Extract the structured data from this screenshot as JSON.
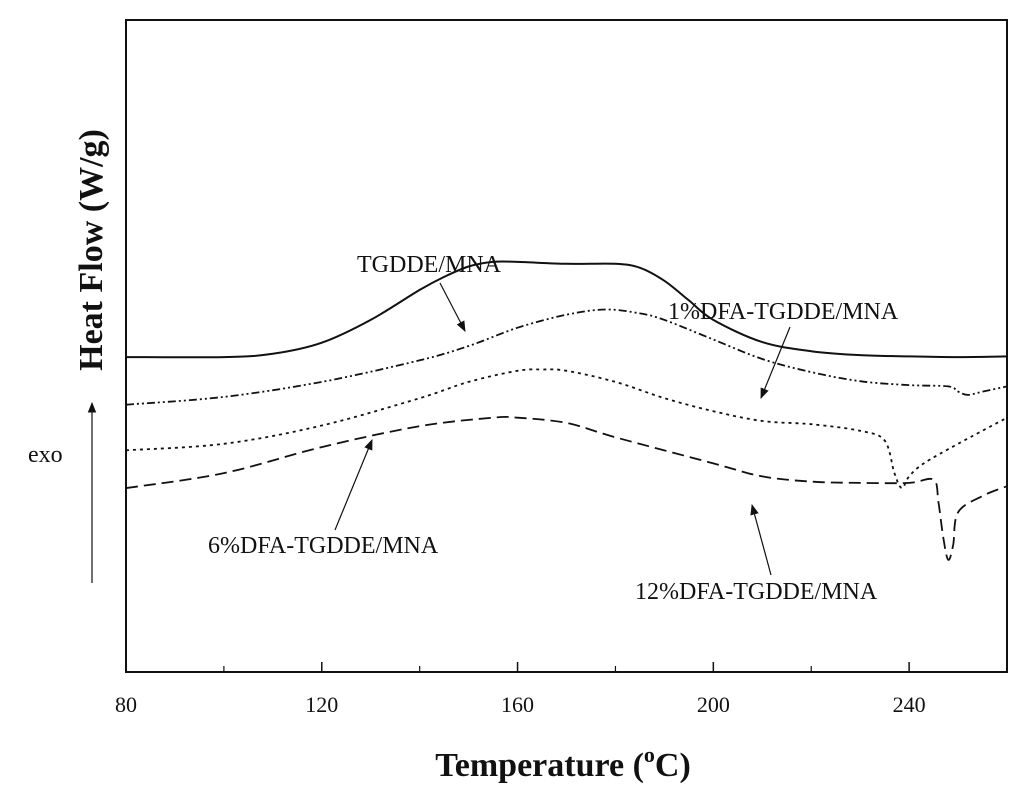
{
  "chart_data": {
    "type": "line",
    "title": "",
    "xlabel": "Temperature (",
    "xlabel_sup": "o",
    "xlabel_unit": "C)",
    "ylabel": "Heat Flow  (W/g)",
    "exo_label": "exo",
    "xlim": [
      80,
      260
    ],
    "ylim": [
      0,
      10
    ],
    "x_ticks": [
      80,
      120,
      160,
      200,
      240
    ],
    "x_tick_labels": [
      "80",
      "120",
      "160",
      "200",
      "240"
    ],
    "x_minor_ticks": [
      100,
      140,
      180,
      220
    ],
    "y_ticks_shown": false,
    "series": [
      {
        "name": "TGDDE/MNA",
        "style": "solid",
        "x": [
          80,
          100,
          110,
          120,
          130,
          140,
          145,
          150,
          155,
          160,
          170,
          180,
          185,
          190,
          195,
          200,
          210,
          220,
          230,
          240,
          250,
          260
        ],
        "y": [
          4.83,
          4.83,
          4.88,
          5.05,
          5.4,
          5.86,
          6.06,
          6.22,
          6.29,
          6.29,
          6.26,
          6.26,
          6.2,
          6.0,
          5.7,
          5.4,
          5.06,
          4.92,
          4.86,
          4.84,
          4.83,
          4.84
        ]
      },
      {
        "name": "1%DFA-TGDDE/MNA",
        "style": "dashdot",
        "x": [
          80,
          100,
          120,
          140,
          150,
          160,
          170,
          178,
          185,
          190,
          200,
          210,
          220,
          230,
          240,
          248,
          250,
          252,
          255,
          260
        ],
        "y": [
          4.1,
          4.22,
          4.45,
          4.78,
          5.0,
          5.28,
          5.48,
          5.56,
          5.5,
          5.4,
          5.1,
          4.8,
          4.6,
          4.46,
          4.4,
          4.38,
          4.3,
          4.25,
          4.3,
          4.38
        ]
      },
      {
        "name": "6%DFA-TGDDE/MNA",
        "style": "dotted",
        "x": [
          80,
          100,
          120,
          140,
          150,
          160,
          165,
          170,
          180,
          190,
          200,
          210,
          220,
          230,
          235,
          237,
          238.5,
          240,
          243,
          250,
          260
        ],
        "y": [
          3.4,
          3.5,
          3.78,
          4.2,
          4.45,
          4.62,
          4.64,
          4.62,
          4.45,
          4.2,
          4.0,
          3.85,
          3.8,
          3.7,
          3.55,
          3.05,
          2.82,
          3.0,
          3.2,
          3.5,
          3.9
        ]
      },
      {
        "name": "12%DFA-TGDDE/MNA",
        "style": "dashed",
        "x": [
          80,
          100,
          120,
          140,
          155,
          160,
          170,
          180,
          200,
          210,
          220,
          230,
          240,
          245,
          246,
          247,
          248,
          249,
          250,
          255,
          260
        ],
        "y": [
          2.82,
          3.05,
          3.45,
          3.77,
          3.9,
          3.9,
          3.82,
          3.6,
          3.2,
          3.0,
          2.92,
          2.9,
          2.9,
          2.95,
          2.6,
          2.05,
          1.72,
          1.95,
          2.45,
          2.7,
          2.85
        ]
      }
    ],
    "annotations": [
      {
        "text": "TGDDE/MNA",
        "series": "TGDDE/MNA",
        "placement": "above-left of peak"
      },
      {
        "text": "1%DFA-TGDDE/MNA",
        "series": "1%DFA-TGDDE/MNA",
        "placement": "upper-right"
      },
      {
        "text": "6%DFA-TGDDE/MNA",
        "series": "6%DFA-TGDDE/MNA",
        "placement": "lower-left"
      },
      {
        "text": "12%DFA-TGDDE/MNA",
        "series": "12%DFA-TGDDE/MNA",
        "placement": "lower-right"
      }
    ]
  }
}
